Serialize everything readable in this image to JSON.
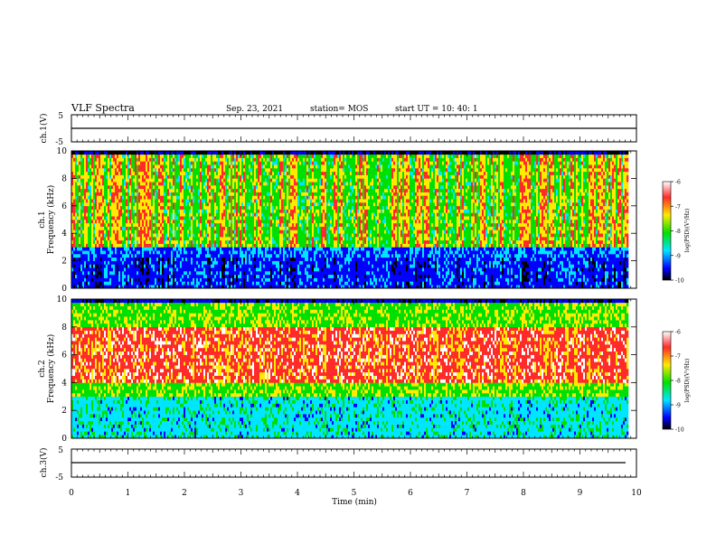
{
  "header": {
    "title": "VLF Spectra",
    "date": "Sep. 23, 2021",
    "station": "station= MOS",
    "start": "start  UT =   10: 40: 1"
  },
  "colors": {
    "background": "#ffffff",
    "axes": "#000000",
    "spectrum_map": [
      "#ffffff",
      "#ff2a2a",
      "#ffea00",
      "#00e000",
      "#00e5ff",
      "#0000ff",
      "#000000"
    ]
  },
  "chart_data": [
    {
      "type": "line",
      "panel": "ch1-waveform",
      "ylabel": "ch.1(V)",
      "ylim": [
        -5,
        5
      ],
      "yticks": [
        "5",
        "-5"
      ],
      "xlim": [
        0,
        10
      ],
      "trace_level": 0
    },
    {
      "type": "heatmap",
      "panel": "ch1-spectrogram",
      "ylabel": "ch.1\nFrequency (kHz)",
      "ylim": [
        0,
        10
      ],
      "yticks": [
        "0",
        "2",
        "4",
        "6",
        "8",
        "10"
      ],
      "xlim": [
        0,
        10
      ],
      "data_end_min": 9.85,
      "band_strong_khz": [
        3,
        9.5
      ],
      "colorbar": {
        "label": "log(PSD)(V²/Hz)",
        "ticks": [
          "-6",
          "-7",
          "-8",
          "-9",
          "-10"
        ],
        "range": [
          -10,
          -6
        ]
      }
    },
    {
      "type": "heatmap",
      "panel": "ch2-spectrogram",
      "ylabel": "ch.2\nFrequency (kHz)",
      "ylim": [
        0,
        10
      ],
      "yticks": [
        "0",
        "2",
        "4",
        "6",
        "8",
        "10"
      ],
      "xlim": [
        0,
        10
      ],
      "data_end_min": 9.85,
      "band_strong_khz": [
        4,
        7.8
      ],
      "colorbar": {
        "label": "log(PSD)(V²/Hz)",
        "ticks": [
          "-6",
          "-7",
          "-8",
          "-9",
          "-10"
        ],
        "range": [
          -10,
          -6
        ]
      }
    },
    {
      "type": "line",
      "panel": "ch3-waveform",
      "ylabel": "ch.3(V)",
      "ylim": [
        -5,
        5
      ],
      "yticks": [
        "5",
        "-5"
      ],
      "xlim": [
        0,
        10
      ],
      "trace_level": 0
    }
  ],
  "xaxis": {
    "label": "Time  (min)",
    "ticks": [
      "0",
      "1",
      "2",
      "3",
      "4",
      "5",
      "6",
      "7",
      "8",
      "9",
      "10"
    ],
    "range": [
      0,
      10
    ]
  }
}
